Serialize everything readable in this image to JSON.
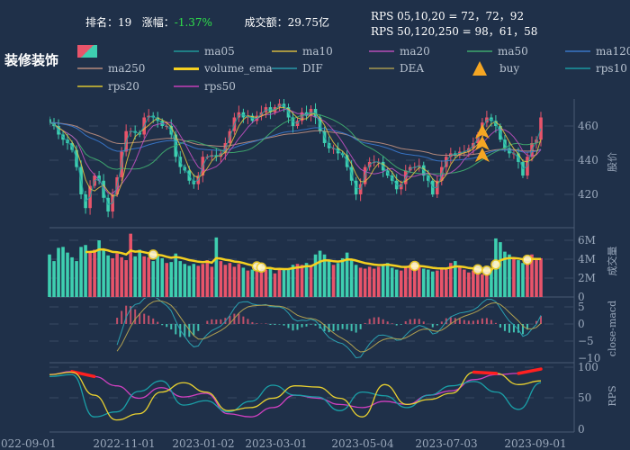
{
  "header": {
    "rank_label": "排名：",
    "rank": "19",
    "change_label": "涨幅：",
    "change": "-1.37%",
    "turnover_label": "成交额：",
    "turnover": "29.75亿",
    "rps_line1": "RPS 05,10,20 = 72，72，92",
    "rps_line2": "RPS 50,120,250 = 98，61，58"
  },
  "sector_title": "装修装饰",
  "legend": [
    {
      "label": "",
      "color": "#e8546a",
      "type": "candle"
    },
    {
      "label": "ma05",
      "color": "#1fa0a0"
    },
    {
      "label": "ma10",
      "color": "#e0c040"
    },
    {
      "label": "ma20",
      "color": "#c050c0"
    },
    {
      "label": "ma50",
      "color": "#40b070"
    },
    {
      "label": "ma120",
      "color": "#3a7ad0"
    },
    {
      "label": "ma250",
      "color": "#c09080"
    },
    {
      "label": "volume_ema",
      "color": "#f5d020"
    },
    {
      "label": "DIF",
      "color": "#2aa0b0"
    },
    {
      "label": "DEA",
      "color": "#b0a050"
    },
    {
      "label": "buy",
      "color": "#f5a623",
      "type": "triangle"
    },
    {
      "label": "rps10",
      "color": "#1aa0a8"
    },
    {
      "label": "rps20",
      "color": "#e8d030"
    },
    {
      "label": "rps50",
      "color": "#d040c0"
    }
  ],
  "chart_data": {
    "type": "candlestick-multi-panel",
    "colors": {
      "up": "#e8546a",
      "down": "#3ecfb0",
      "grid": "#3a4a62",
      "axis": "#9aa8bb"
    },
    "x_ticks": [
      "2022-09-01",
      "2022-11-01",
      "2023-01-02",
      "2023-03-01",
      "2023-05-04",
      "2023-07-03",
      "2023-09-01"
    ],
    "price_axis": {
      "title": "股价",
      "ticks": [
        "460",
        "440",
        "420"
      ],
      "range": [
        400,
        476
      ]
    },
    "volume_axis": {
      "title": "成交量",
      "ticks": [
        "6M",
        "4M",
        "2M",
        "0"
      ],
      "range": [
        0,
        7
      ]
    },
    "macd_axis": {
      "title": "close-macd",
      "ticks": [
        "5",
        "0",
        "−5",
        "−10"
      ],
      "range": [
        -10,
        8
      ]
    },
    "rps_axis": {
      "title": "RPS",
      "ticks": [
        "100",
        "50",
        "0"
      ],
      "range": [
        0,
        100
      ]
    },
    "close": [
      462,
      460,
      455,
      452,
      450,
      446,
      436,
      420,
      412,
      425,
      431,
      428,
      418,
      410,
      420,
      430,
      445,
      457,
      457,
      456,
      455,
      465,
      466,
      465,
      463,
      460,
      460,
      455,
      442,
      436,
      434,
      428,
      426,
      431,
      442,
      442,
      443,
      442,
      444,
      450,
      457,
      465,
      468,
      465,
      466,
      463,
      466,
      468,
      471,
      468,
      471,
      473,
      471,
      465,
      460,
      463,
      468,
      466,
      470,
      465,
      457,
      450,
      447,
      447,
      444,
      443,
      436,
      428,
      420,
      426,
      436,
      439,
      439,
      439,
      434,
      431,
      428,
      423,
      426,
      434,
      436,
      436,
      437,
      431,
      428,
      420,
      428,
      436,
      442,
      444,
      443,
      445,
      445,
      447,
      450,
      455,
      462,
      465,
      463,
      460,
      452,
      447,
      444,
      444,
      439,
      431,
      442,
      450,
      452,
      465
    ],
    "volume_millions": [
      4.5,
      3.8,
      5.2,
      5.3,
      4.7,
      4.2,
      3.8,
      5.3,
      5.5,
      4.8,
      5.0,
      6.0,
      5.1,
      4.4,
      4.1,
      4.6,
      4.2,
      3.9,
      6.7,
      4.3,
      5.0,
      4.3,
      4.2,
      3.8,
      4.4,
      4.1,
      3.6,
      3.7,
      4.6,
      3.8,
      3.5,
      3.3,
      3.5,
      3.3,
      3.5,
      3.9,
      3.2,
      6.3,
      3.8,
      3.4,
      3.6,
      3.2,
      3.5,
      3.1,
      2.8,
      2.9,
      2.7,
      2.6,
      2.9,
      3.0,
      2.5,
      3.0,
      2.9,
      3.0,
      3.4,
      3.5,
      3.4,
      3.6,
      3.3,
      4.5,
      4.9,
      4.5,
      3.8,
      3.4,
      3.6,
      4.1,
      4.7,
      3.9,
      3.4,
      3.1,
      3.0,
      3.2,
      3.0,
      3.2,
      3.4,
      3.6,
      3.1,
      2.9,
      2.8,
      3.1,
      3.4,
      3.6,
      3.3,
      3.0,
      2.9,
      2.7,
      2.8,
      3.0,
      2.9,
      3.6,
      3.8,
      3.2,
      2.9,
      2.6,
      2.8,
      2.5,
      2.4,
      2.6,
      3.0,
      6.2,
      5.8,
      4.8,
      4.5,
      4.1,
      3.9,
      3.6,
      3.7,
      4.5,
      3.9,
      4.1
    ],
    "volume_highlights": [
      23,
      46,
      47,
      81,
      95,
      97,
      99,
      106
    ],
    "buy_signals": [
      {
        "index": 96,
        "count": 3
      }
    ],
    "rps": {
      "rps10": [
        85,
        88,
        20,
        28,
        61,
        78,
        39,
        46,
        28,
        45,
        71,
        55,
        52,
        30,
        60,
        54,
        35,
        55,
        70,
        77,
        60,
        32,
        75
      ],
      "rps20": [
        88,
        92,
        55,
        15,
        25,
        60,
        75,
        60,
        30,
        35,
        50,
        70,
        68,
        50,
        20,
        72,
        40,
        48,
        58,
        92,
        90,
        72,
        78
      ],
      "rps50": [
        88,
        93,
        85,
        70,
        50,
        67,
        52,
        58,
        25,
        20,
        35,
        55,
        50,
        40,
        35,
        45,
        40,
        55,
        62,
        80,
        88,
        90,
        97
      ],
      "highlight_threshold": 90
    }
  }
}
